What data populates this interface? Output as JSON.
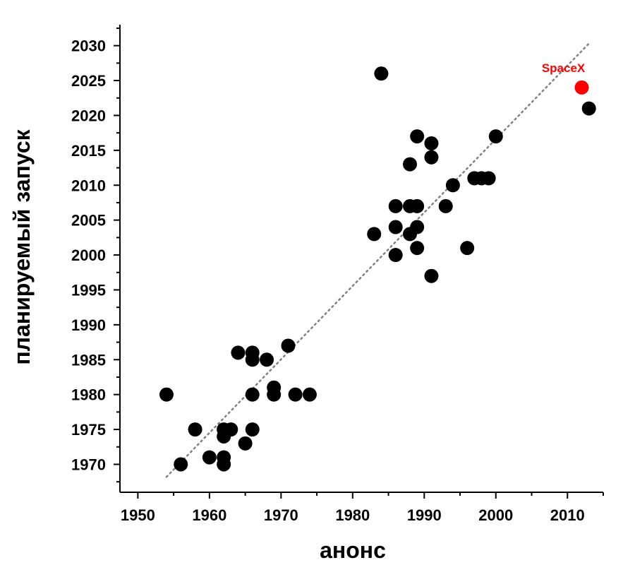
{
  "chart_data": {
    "type": "scatter",
    "xlabel": "анонс",
    "ylabel": "планируемый запуск",
    "xlim": [
      1947.5,
      2015
    ],
    "ylim": [
      1966,
      2033
    ],
    "x_ticks": [
      "1950",
      "1960",
      "1970",
      "1980",
      "1990",
      "2000",
      "2010"
    ],
    "y_ticks": [
      "1970",
      "1975",
      "1980",
      "1985",
      "1990",
      "1995",
      "2000",
      "2005",
      "2010",
      "2015",
      "2020",
      "2025",
      "2030"
    ],
    "grid": false,
    "point_color": "#000000",
    "highlight_color": "#ff0000",
    "trend_color": "#808080",
    "trend_line": [
      [
        1954,
        1968.2
      ],
      [
        2013,
        2030.3
      ]
    ],
    "points": [
      [
        1954,
        1980
      ],
      [
        1956,
        1970
      ],
      [
        1958,
        1975
      ],
      [
        1960,
        1971
      ],
      [
        1962,
        1971
      ],
      [
        1962,
        1970
      ],
      [
        1962,
        1975
      ],
      [
        1962,
        1974
      ],
      [
        1963,
        1975
      ],
      [
        1964,
        1986
      ],
      [
        1965,
        1973
      ],
      [
        1966,
        1986
      ],
      [
        1966,
        1985
      ],
      [
        1966,
        1980
      ],
      [
        1966,
        1975
      ],
      [
        1968,
        1985
      ],
      [
        1969,
        1981
      ],
      [
        1969,
        1980
      ],
      [
        1971,
        1987
      ],
      [
        1972,
        1980
      ],
      [
        1974,
        1980
      ],
      [
        1983,
        2003
      ],
      [
        1984,
        2026
      ],
      [
        1986,
        2007
      ],
      [
        1986,
        2004
      ],
      [
        1986,
        2000
      ],
      [
        1988,
        2013
      ],
      [
        1988,
        2007
      ],
      [
        1988,
        2003
      ],
      [
        1989,
        2017
      ],
      [
        1989,
        2007
      ],
      [
        1989,
        2004
      ],
      [
        1989,
        2001
      ],
      [
        1991,
        2016
      ],
      [
        1991,
        2014
      ],
      [
        1991,
        1997
      ],
      [
        1993,
        2007
      ],
      [
        1994,
        2010
      ],
      [
        1996,
        2001
      ],
      [
        1997,
        2011
      ],
      [
        1998,
        2011
      ],
      [
        1999,
        2011
      ],
      [
        2000,
        2017
      ],
      [
        2013,
        2021
      ]
    ],
    "highlight": {
      "label": "SpaceX",
      "x": 2012,
      "y": 2024
    }
  }
}
